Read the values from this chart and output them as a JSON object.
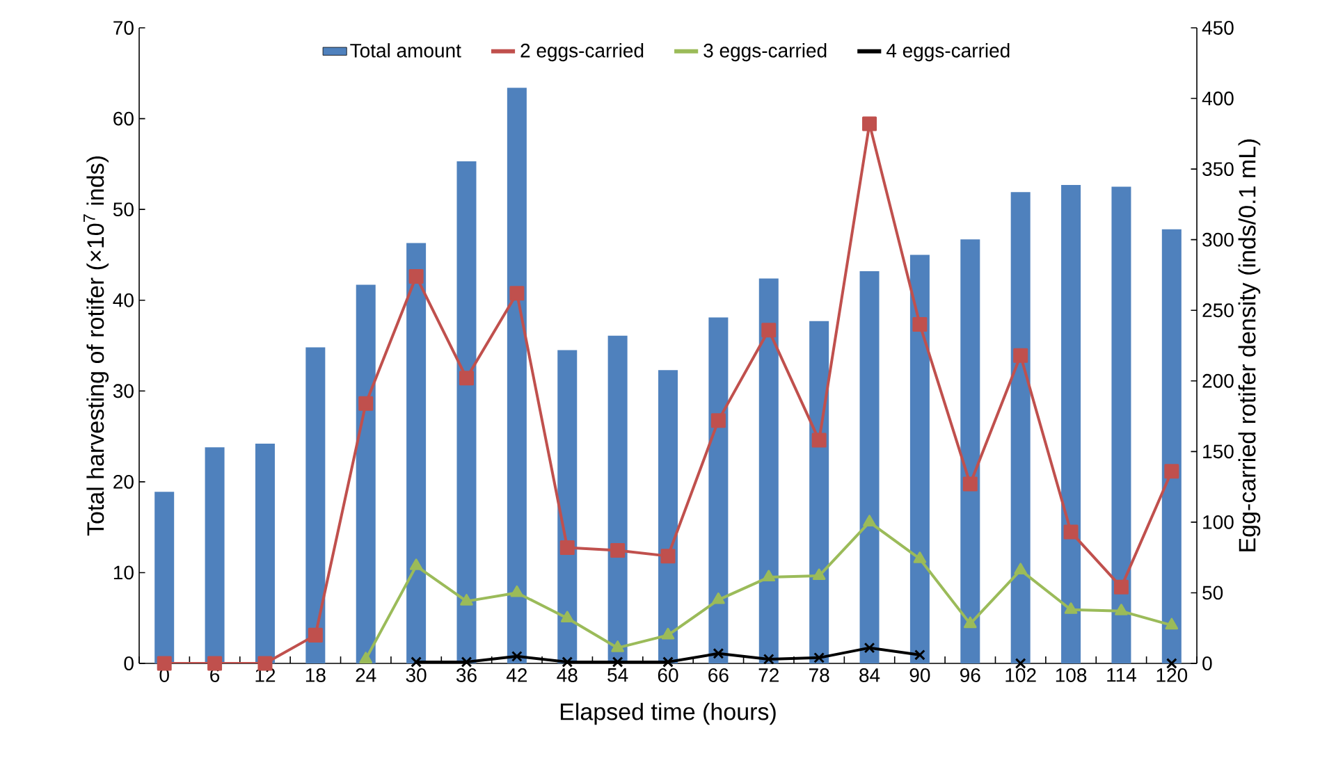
{
  "chart_data": {
    "type": "bar",
    "xlabel": "Elapsed time (hours)",
    "ylabel": "Total harvesting of rotifer (×10$^{7}$ inds)",
    "y2label": "Egg-carried rotifer density (inds/0.1 mL)",
    "categories": [
      "0",
      "6",
      "12",
      "18",
      "24",
      "30",
      "36",
      "42",
      "48",
      "54",
      "60",
      "66",
      "72",
      "78",
      "84",
      "90",
      "96",
      "102",
      "108",
      "114",
      "120"
    ],
    "series": [
      {
        "name": "Total amount",
        "color": "#4f81bd",
        "values": [
          18.9,
          23.8,
          24.2,
          34.8,
          41.7,
          46.3,
          55.3,
          63.4,
          34.5,
          36.1,
          32.3,
          38.1,
          42.4,
          37.7,
          43.2,
          45.0,
          46.7,
          51.9,
          52.7,
          52.5,
          47.8
        ]
      },
      {
        "type": "line",
        "name": "2 eggs-carried",
        "color": "#c0504d",
        "axis": "y2",
        "marker": "square",
        "values": [
          0,
          0,
          0,
          20,
          184,
          274,
          202,
          262,
          82,
          80,
          76,
          172,
          236,
          158,
          382,
          240,
          127,
          218,
          93,
          54,
          136
        ]
      },
      {
        "type": "line",
        "name": "3 eggs-carried",
        "color": "#9bbb59",
        "axis": "y2",
        "marker": "triangle",
        "values": [
          null,
          null,
          null,
          null,
          3,
          69,
          44,
          50,
          32,
          11,
          20,
          45,
          61,
          62,
          100,
          74,
          28,
          66,
          38,
          37,
          27
        ]
      },
      {
        "type": "line",
        "name": "4 eggs-carried",
        "color": "#000000",
        "axis": "y2",
        "marker": "cross",
        "values": [
          null,
          null,
          null,
          null,
          null,
          1,
          1,
          5,
          1,
          1,
          1,
          7,
          3,
          4,
          11,
          6,
          null,
          0,
          null,
          null,
          0
        ]
      }
    ],
    "ylim": [
      0,
      70
    ],
    "yticks": [
      0,
      10,
      20,
      30,
      40,
      50,
      60,
      70
    ],
    "y2lim": [
      0,
      450
    ],
    "y2ticks": [
      0,
      50,
      100,
      150,
      200,
      250,
      300,
      350,
      400,
      450
    ],
    "legend": "top",
    "grid": false
  }
}
